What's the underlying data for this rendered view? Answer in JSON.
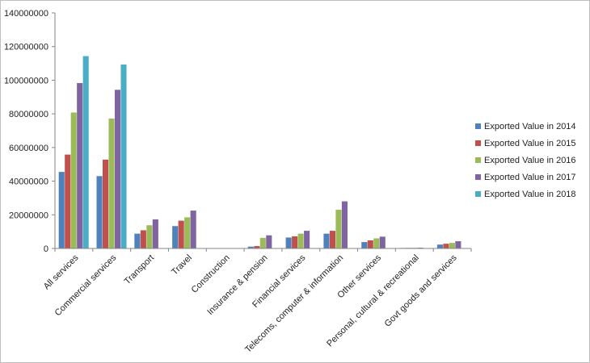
{
  "chart_data": {
    "type": "bar",
    "categories": [
      "All services",
      "Commercial services",
      "Transport",
      "Travel",
      "Construction",
      "Insurance & pension",
      "Financial services",
      "Telecoms, computer & information",
      "Other services",
      "Personal, cultural & recreational",
      "Govt goods and services"
    ],
    "series": [
      {
        "name": "Exported Value in 2014",
        "color": "#4f81bd",
        "values": [
          45500000,
          43000000,
          8800000,
          13300000,
          100000,
          1100000,
          6500000,
          8800000,
          3800000,
          300000,
          2300000
        ]
      },
      {
        "name": "Exported Value in 2015",
        "color": "#c0504d",
        "values": [
          55800000,
          52800000,
          10800000,
          16500000,
          100000,
          1400000,
          7200000,
          10500000,
          4800000,
          350000,
          2800000
        ]
      },
      {
        "name": "Exported Value in 2016",
        "color": "#9bbb59",
        "values": [
          80800000,
          77200000,
          13800000,
          18500000,
          100000,
          6300000,
          8800000,
          23000000,
          6000000,
          400000,
          3300000
        ]
      },
      {
        "name": "Exported Value in 2017",
        "color": "#8064a2",
        "values": [
          98300000,
          94300000,
          17300000,
          22500000,
          100000,
          7800000,
          10500000,
          28000000,
          7000000,
          450000,
          4300000
        ]
      },
      {
        "name": "Exported Value in 2018",
        "color": "#4bacc6",
        "values": [
          114300000,
          109300000,
          0,
          0,
          0,
          0,
          0,
          0,
          0,
          0,
          0
        ]
      }
    ],
    "ylim": [
      0,
      140000000
    ],
    "yticks": [
      0,
      20000000,
      40000000,
      60000000,
      80000000,
      100000000,
      120000000,
      140000000
    ],
    "ytick_labels": [
      "0",
      "20000000",
      "40000000",
      "60000000",
      "80000000",
      "100000000",
      "120000000",
      "140000000"
    ],
    "title": "",
    "xlabel": "",
    "ylabel": "",
    "grid": false,
    "legend_position": "right"
  }
}
